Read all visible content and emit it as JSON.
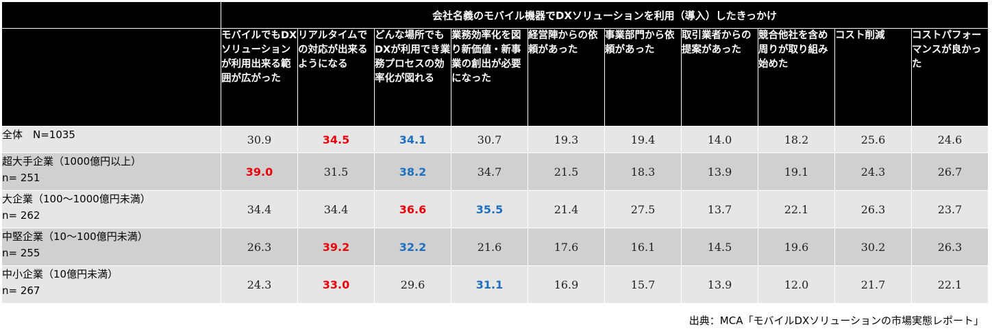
{
  "chart_data": {
    "type": "table",
    "title": "会社名義のモバイル機器でDXソリューションを利用（導入）したきっかけ",
    "columns": [
      "モバイルでもDXソリューションが利用出来る範囲が広がった",
      "リアルタイムでの対応が出来るようになる",
      "どんな場所でもDXが利用でき業務プロセスの効率化が図れる",
      "業務効率化を図り新価値・新事業の創出が必要になった",
      "経営陣からの依頼があった",
      "事業部門から依頼があった",
      "取引業者からの提案があった",
      "競合他社を含め周りが取り組み始めた",
      "コスト削減",
      "コストパフォーマンスが良かった"
    ],
    "rows": [
      {
        "label": "全体　N=1035",
        "label2": "",
        "values": [
          "30.9",
          "34.5",
          "34.1",
          "30.7",
          "19.3",
          "19.4",
          "14.0",
          "18.2",
          "25.6",
          "24.6"
        ],
        "highlight": [
          "",
          "red",
          "blue",
          "",
          "",
          "",
          "",
          "",
          "",
          ""
        ]
      },
      {
        "label": "超大手企業（1000億円以上）",
        "label2": "n= 251",
        "values": [
          "39.0",
          "31.5",
          "38.2",
          "34.7",
          "21.5",
          "18.3",
          "13.9",
          "19.1",
          "24.3",
          "26.7"
        ],
        "highlight": [
          "red",
          "",
          "blue",
          "",
          "",
          "",
          "",
          "",
          "",
          ""
        ]
      },
      {
        "label": "大企業（100～1000億円未満）",
        "label2": "n= 262",
        "values": [
          "34.4",
          "34.4",
          "36.6",
          "35.5",
          "21.4",
          "27.5",
          "13.7",
          "22.1",
          "26.3",
          "23.7"
        ],
        "highlight": [
          "",
          "",
          "red",
          "blue",
          "",
          "",
          "",
          "",
          "",
          ""
        ]
      },
      {
        "label": "中堅企業（10～100億円未満）",
        "label2": "n= 255",
        "values": [
          "26.3",
          "39.2",
          "32.2",
          "21.6",
          "17.6",
          "16.1",
          "14.5",
          "19.6",
          "30.2",
          "26.3"
        ],
        "highlight": [
          "",
          "red",
          "blue",
          "",
          "",
          "",
          "",
          "",
          "",
          ""
        ]
      },
      {
        "label": "中小企業（10億円未満）",
        "label2": "n= 267",
        "values": [
          "24.3",
          "33.0",
          "29.6",
          "31.1",
          "16.9",
          "15.7",
          "13.9",
          "12.0",
          "21.7",
          "22.1"
        ],
        "highlight": [
          "",
          "red",
          "",
          "blue",
          "",
          "",
          "",
          "",
          "",
          ""
        ]
      }
    ],
    "colors": {
      "header_bg": "#000000",
      "red": "#e8000b",
      "blue": "#1f6fbf",
      "row_light": "#e6e6e6",
      "row_dark": "#d0d0d0"
    }
  },
  "source": "出典：MCA「モバイルDXソリューションの市場実態レポート」"
}
